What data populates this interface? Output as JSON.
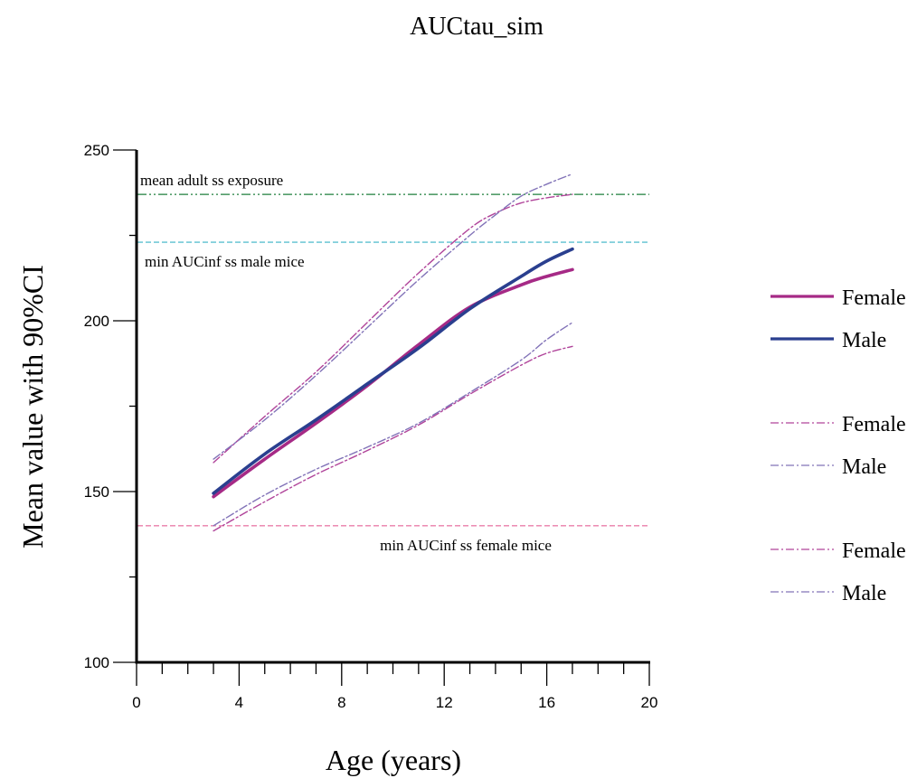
{
  "chart_data": {
    "type": "line",
    "title": "AUCtau_sim",
    "xlabel": "Age (years)",
    "ylabel": "Mean value with 90%CI",
    "xlim": [
      0,
      20
    ],
    "ylim": [
      100,
      250
    ],
    "x_ticks": [
      0,
      4,
      8,
      12,
      16,
      20
    ],
    "y_ticks": [
      100,
      150,
      200,
      250
    ],
    "grid": false,
    "legend_position": "right",
    "series": [
      {
        "name": "Female",
        "role": "mean",
        "color": "#a62a86",
        "x": [
          3,
          5,
          7,
          9,
          11,
          13,
          15,
          16,
          17
        ],
        "y": [
          148.5,
          159.5,
          170,
          181,
          193,
          204,
          210.5,
          213,
          215
        ]
      },
      {
        "name": "Male",
        "role": "mean",
        "color": "#2a3f8f",
        "x": [
          3,
          5,
          7,
          9,
          11,
          13,
          15,
          16,
          17
        ],
        "y": [
          149.5,
          161,
          171,
          181.5,
          192,
          203.5,
          213,
          217.5,
          221
        ]
      },
      {
        "name": "Female",
        "role": "upper",
        "color": "#b0449a",
        "x": [
          3,
          5,
          7,
          9,
          11,
          13,
          14,
          15,
          16,
          17
        ],
        "y": [
          158.5,
          172,
          185,
          199.5,
          214,
          227,
          231.5,
          234.5,
          236,
          237
        ]
      },
      {
        "name": "Male",
        "role": "upper",
        "color": "#8273b8",
        "x": [
          3,
          5,
          7,
          9,
          11,
          13,
          14,
          15,
          16,
          17
        ],
        "y": [
          159.5,
          171,
          184,
          198,
          212,
          225,
          231,
          236.5,
          240,
          243
        ]
      },
      {
        "name": "Female",
        "role": "lower",
        "color": "#b0449a",
        "x": [
          3,
          5,
          7,
          9,
          11,
          13,
          15,
          16,
          17
        ],
        "y": [
          138.5,
          147,
          155,
          162,
          169.5,
          178.5,
          187,
          190.5,
          192.5
        ]
      },
      {
        "name": "Male",
        "role": "lower",
        "color": "#8273b8",
        "x": [
          3,
          5,
          7,
          9,
          11,
          13,
          15,
          16,
          17
        ],
        "y": [
          140,
          149,
          156.5,
          163,
          170,
          179,
          188.5,
          194.5,
          199.5
        ]
      }
    ],
    "reference_lines": [
      {
        "label": "mean adult ss exposure",
        "y": 237,
        "color": "#1e7f3c",
        "label_anchor": "left",
        "label_above": true
      },
      {
        "label": "min AUCinf ss male mice",
        "y": 223,
        "color": "#5cc1cf",
        "label_anchor": "left",
        "label_above": false
      },
      {
        "label": "min AUCinf ss female mice",
        "y": 140,
        "color": "#ea7ea9",
        "label_anchor": "center",
        "label_above": false
      }
    ],
    "legend_groups": [
      [
        {
          "label": "Female",
          "color": "#a62a86",
          "style": "solid"
        },
        {
          "label": "Male",
          "color": "#2a3f8f",
          "style": "solid"
        }
      ],
      [
        {
          "label": "Female",
          "color": "#b0449a",
          "style": "dashdot"
        },
        {
          "label": "Male",
          "color": "#8273b8",
          "style": "dashdot"
        }
      ],
      [
        {
          "label": "Female",
          "color": "#b0449a",
          "style": "dashdot"
        },
        {
          "label": "Male",
          "color": "#8273b8",
          "style": "dashdot"
        }
      ]
    ]
  }
}
